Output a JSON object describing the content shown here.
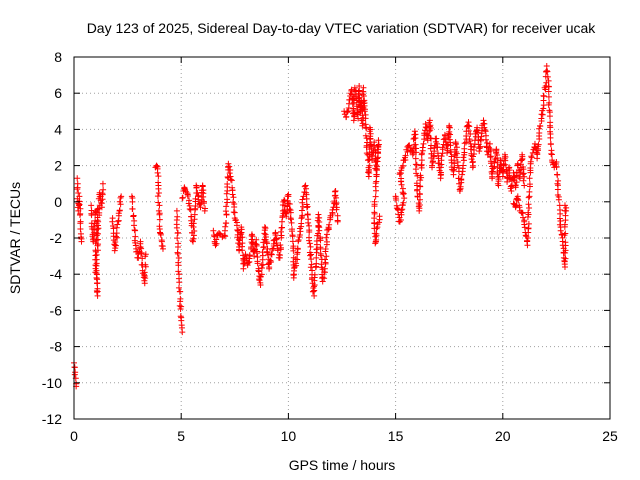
{
  "chart_data": {
    "type": "scatter",
    "title": "Day 123 of 2025, Sidereal Day-to-day VTEC variation (SDTVAR) for receiver ucak",
    "xlabel": "GPS time / hours",
    "ylabel": "SDTVAR / TECUs",
    "xlim": [
      0,
      25
    ],
    "ylim": [
      -12,
      8
    ],
    "xticks": [
      0,
      5,
      10,
      15,
      20,
      25
    ],
    "yticks": [
      -12,
      -10,
      -8,
      -6,
      -4,
      -2,
      0,
      2,
      4,
      6,
      8
    ],
    "grid": true,
    "marker": "+",
    "color": "#ff0000",
    "segments": [
      [
        0.0,
        -8.9
      ],
      [
        0.1,
        -10.2
      ],
      [
        0.15,
        1.3
      ],
      [
        0.2,
        -0.5
      ],
      [
        0.25,
        0.3
      ],
      [
        0.3,
        -1.5
      ],
      [
        0.35,
        -2.2
      ],
      [
        0.8,
        -0.2
      ],
      [
        0.85,
        -1.5
      ],
      [
        0.9,
        -2.2
      ],
      [
        1.0,
        -0.6
      ],
      [
        1.1,
        -0.4
      ],
      [
        1.0,
        -3.5
      ],
      [
        1.05,
        -4.2
      ],
      [
        1.1,
        -5.2
      ],
      [
        1.05,
        -3.8
      ],
      [
        1.2,
        0.5
      ],
      [
        1.3,
        -0.3
      ],
      [
        1.35,
        1.0
      ],
      [
        1.8,
        -0.9
      ],
      [
        1.85,
        -1.9
      ],
      [
        1.9,
        -2.7
      ],
      [
        2.2,
        0.3
      ],
      [
        2.7,
        0.3
      ],
      [
        2.8,
        -1.3
      ],
      [
        2.9,
        -2.6
      ],
      [
        3.0,
        -3.1
      ],
      [
        3.1,
        -2.2
      ],
      [
        3.2,
        -3.8
      ],
      [
        3.3,
        -4.5
      ],
      [
        3.35,
        -2.9
      ],
      [
        3.8,
        1.9
      ],
      [
        3.85,
        2.0
      ],
      [
        3.9,
        1.6
      ],
      [
        4.0,
        -1.5
      ],
      [
        4.1,
        -2.2
      ],
      [
        4.15,
        -2.6
      ],
      [
        4.8,
        -0.5
      ],
      [
        4.85,
        -2.5
      ],
      [
        4.9,
        -4.0
      ],
      [
        4.95,
        -5.5
      ],
      [
        5.0,
        -6.4
      ],
      [
        5.05,
        -7.2
      ],
      [
        5.05,
        0.2
      ],
      [
        5.15,
        0.8
      ],
      [
        5.3,
        0.4
      ],
      [
        5.4,
        -0.4
      ],
      [
        5.5,
        -1.2
      ],
      [
        5.55,
        -2.2
      ],
      [
        5.7,
        0.9
      ],
      [
        5.8,
        0.3
      ],
      [
        5.9,
        -0.3
      ],
      [
        6.0,
        0.9
      ],
      [
        6.1,
        -0.5
      ],
      [
        6.5,
        -1.6
      ],
      [
        6.6,
        -2.4
      ],
      [
        6.7,
        -1.8
      ],
      [
        7.05,
        -1.9
      ],
      [
        7.2,
        2.1
      ],
      [
        7.3,
        1.4
      ],
      [
        7.4,
        0.4
      ],
      [
        7.5,
        -0.9
      ],
      [
        7.6,
        -1.3
      ],
      [
        7.7,
        -2.7
      ],
      [
        7.8,
        -1.4
      ],
      [
        7.9,
        -3.7
      ],
      [
        8.0,
        -2.9
      ],
      [
        8.1,
        -3.5
      ],
      [
        8.2,
        -3.0
      ],
      [
        8.3,
        -1.8
      ],
      [
        8.4,
        -3.0
      ],
      [
        8.5,
        -2.1
      ],
      [
        8.6,
        -3.8
      ],
      [
        8.7,
        -4.6
      ],
      [
        8.8,
        -3.2
      ],
      [
        8.9,
        -1.4
      ],
      [
        9.0,
        -2.3
      ],
      [
        9.1,
        -3.7
      ],
      [
        9.4,
        -1.7
      ],
      [
        9.5,
        -2.6
      ],
      [
        9.6,
        -3.1
      ],
      [
        9.7,
        -1.1
      ],
      [
        9.8,
        0.1
      ],
      [
        9.9,
        -0.8
      ],
      [
        10.0,
        0.4
      ],
      [
        10.1,
        -0.9
      ],
      [
        10.2,
        -1.9
      ],
      [
        10.25,
        -4.2
      ],
      [
        10.35,
        -3.4
      ],
      [
        10.6,
        -1.2
      ],
      [
        10.7,
        0.3
      ],
      [
        10.8,
        0.9
      ],
      [
        11.0,
        -2.3
      ],
      [
        11.1,
        -4.2
      ],
      [
        11.2,
        -5.2
      ],
      [
        11.3,
        -3.1
      ],
      [
        11.4,
        -0.7
      ],
      [
        11.5,
        -2.6
      ],
      [
        11.6,
        -4.4
      ],
      [
        11.7,
        -3.7
      ],
      [
        11.8,
        -1.8
      ],
      [
        12.1,
        -0.3
      ],
      [
        12.2,
        0.6
      ],
      [
        12.3,
        -1.1
      ],
      [
        12.6,
        5.0
      ],
      [
        12.7,
        4.7
      ],
      [
        12.95,
        6.2
      ],
      [
        13.0,
        5.4
      ],
      [
        13.05,
        4.5
      ],
      [
        13.1,
        6.3
      ],
      [
        13.15,
        5.9
      ],
      [
        13.2,
        5.6
      ],
      [
        13.25,
        4.6
      ],
      [
        13.3,
        6.4
      ],
      [
        13.35,
        4.9
      ],
      [
        13.4,
        5.6
      ],
      [
        13.45,
        4.2
      ],
      [
        13.5,
        6.3
      ],
      [
        13.55,
        5.3
      ],
      [
        13.6,
        4.8
      ],
      [
        13.65,
        3.1
      ],
      [
        13.7,
        2.6
      ],
      [
        13.75,
        1.4
      ],
      [
        13.8,
        4.1
      ],
      [
        13.9,
        2.3
      ],
      [
        14.0,
        3.3
      ],
      [
        14.1,
        1.5
      ],
      [
        14.2,
        3.4
      ],
      [
        14.0,
        -0.9
      ],
      [
        14.05,
        -2.3
      ],
      [
        14.15,
        -1.4
      ],
      [
        14.25,
        -0.8
      ],
      [
        15.0,
        0.3
      ],
      [
        15.1,
        -0.4
      ],
      [
        15.2,
        -1.1
      ],
      [
        15.4,
        0.2
      ],
      [
        15.2,
        1.6
      ],
      [
        15.4,
        2.3
      ],
      [
        15.6,
        3.1
      ],
      [
        15.8,
        2.6
      ],
      [
        15.9,
        3.9
      ],
      [
        16.0,
        0.9
      ],
      [
        16.1,
        -0.5
      ],
      [
        16.2,
        2.0
      ],
      [
        16.3,
        3.2
      ],
      [
        16.4,
        4.3
      ],
      [
        16.5,
        3.4
      ],
      [
        16.6,
        4.5
      ],
      [
        16.7,
        1.9
      ],
      [
        16.8,
        2.8
      ],
      [
        16.9,
        3.5
      ],
      [
        17.0,
        2.4
      ],
      [
        17.1,
        1.3
      ],
      [
        17.2,
        2.9
      ],
      [
        17.3,
        3.7
      ],
      [
        17.4,
        2.7
      ],
      [
        17.5,
        4.2
      ],
      [
        17.6,
        2.3
      ],
      [
        17.7,
        1.5
      ],
      [
        17.8,
        3.3
      ],
      [
        17.9,
        2.2
      ],
      [
        18.0,
        0.6
      ],
      [
        18.1,
        1.5
      ],
      [
        18.2,
        2.6
      ],
      [
        18.3,
        3.9
      ],
      [
        18.4,
        4.4
      ],
      [
        18.5,
        3.2
      ],
      [
        18.6,
        1.9
      ],
      [
        18.7,
        3.4
      ],
      [
        18.8,
        4.1
      ],
      [
        18.9,
        2.8
      ],
      [
        19.0,
        3.6
      ],
      [
        19.1,
        4.5
      ],
      [
        19.2,
        3.9
      ],
      [
        19.3,
        2.6
      ],
      [
        19.4,
        3.2
      ],
      [
        19.5,
        1.3
      ],
      [
        19.6,
        2.2
      ],
      [
        19.7,
        2.9
      ],
      [
        19.8,
        0.9
      ],
      [
        19.9,
        2.3
      ],
      [
        20.0,
        1.4
      ],
      [
        20.1,
        2.6
      ],
      [
        20.2,
        1.1
      ],
      [
        20.3,
        1.9
      ],
      [
        20.4,
        0.6
      ],
      [
        20.5,
        1.6
      ],
      [
        20.6,
        0.8
      ],
      [
        20.7,
        2.1
      ],
      [
        20.8,
        1.3
      ],
      [
        20.9,
        2.6
      ],
      [
        21.0,
        0.9
      ],
      [
        20.5,
        -0.1
      ],
      [
        20.6,
        -0.3
      ],
      [
        20.7,
        0.3
      ],
      [
        20.8,
        -0.5
      ],
      [
        20.9,
        -0.6
      ],
      [
        21.0,
        -1.1
      ],
      [
        21.1,
        -1.9
      ],
      [
        21.15,
        -2.4
      ],
      [
        21.2,
        -0.7
      ],
      [
        21.25,
        1.3
      ],
      [
        21.3,
        2.1
      ],
      [
        21.4,
        2.7
      ],
      [
        21.5,
        3.2
      ],
      [
        21.6,
        2.4
      ],
      [
        21.7,
        3.8
      ],
      [
        21.8,
        4.6
      ],
      [
        21.9,
        5.6
      ],
      [
        22.0,
        6.4
      ],
      [
        22.05,
        7.5
      ],
      [
        22.1,
        6.9
      ],
      [
        22.15,
        5.8
      ],
      [
        22.2,
        4.2
      ],
      [
        22.3,
        2.3
      ],
      [
        22.4,
        1.9
      ],
      [
        22.5,
        2.2
      ],
      [
        22.7,
        -1.6
      ],
      [
        22.8,
        -2.4
      ],
      [
        22.85,
        -3.1
      ],
      [
        22.9,
        -3.6
      ],
      [
        22.9,
        -0.2
      ],
      [
        22.95,
        -0.5
      ]
    ]
  }
}
